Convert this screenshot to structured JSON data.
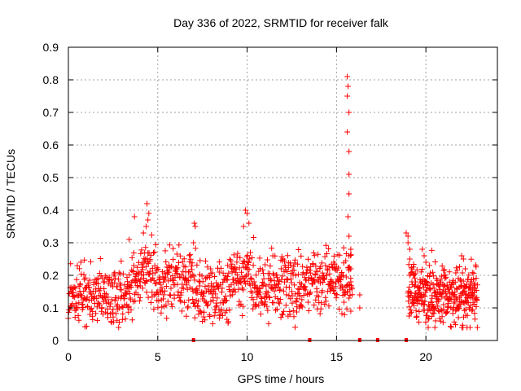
{
  "chart_data": {
    "type": "scatter",
    "title": "Day 336 of 2022, SRMTID for receiver falk",
    "xlabel": "GPS time / hours",
    "ylabel": "SRMTID / TECUs",
    "xlim": [
      0,
      24
    ],
    "ylim": [
      0,
      0.9
    ],
    "xticks": [
      "0",
      "5",
      "10",
      "15",
      "20"
    ],
    "yticks": [
      "0",
      "0.1",
      "0.2",
      "0.3",
      "0.4",
      "0.5",
      "0.6",
      "0.7",
      "0.8",
      "0.9"
    ],
    "grid": true,
    "marker": "+",
    "color": "#ff0000",
    "series": [
      {
        "name": "SRMTID",
        "segments": [
          {
            "x_start": 0.0,
            "x_end": 15.9,
            "points": 1000,
            "seed": 11
          },
          {
            "x_start": 19.0,
            "x_end": 22.9,
            "points": 340,
            "seed": 23
          }
        ],
        "points": [
          [
            4.4,
            0.42
          ],
          [
            4.5,
            0.39
          ],
          [
            4.45,
            0.37
          ],
          [
            4.35,
            0.35
          ],
          [
            3.7,
            0.38
          ],
          [
            4.2,
            0.33
          ],
          [
            3.4,
            0.31
          ],
          [
            7.05,
            0.36
          ],
          [
            7.1,
            0.35
          ],
          [
            7.0,
            0.3
          ],
          [
            9.9,
            0.4
          ],
          [
            10.0,
            0.39
          ],
          [
            10.1,
            0.36
          ],
          [
            9.8,
            0.35
          ],
          [
            15.6,
            0.81
          ],
          [
            15.65,
            0.78
          ],
          [
            15.6,
            0.75
          ],
          [
            15.7,
            0.7
          ],
          [
            15.6,
            0.64
          ],
          [
            15.7,
            0.58
          ],
          [
            15.7,
            0.51
          ],
          [
            15.7,
            0.45
          ],
          [
            15.65,
            0.38
          ],
          [
            15.7,
            0.32
          ],
          [
            15.8,
            0.28
          ],
          [
            15.7,
            0.26
          ],
          [
            15.8,
            0.22
          ],
          [
            15.8,
            0.18
          ],
          [
            15.7,
            0.13
          ],
          [
            15.8,
            0.09
          ],
          [
            16.3,
            0.14
          ],
          [
            16.3,
            0.1
          ],
          [
            18.9,
            0.33
          ],
          [
            19.0,
            0.32
          ],
          [
            19.0,
            0.3
          ],
          [
            19.1,
            0.28
          ],
          [
            19.1,
            0.25
          ],
          [
            19.2,
            0.22
          ],
          [
            19.3,
            0.2
          ],
          [
            19.4,
            0.17
          ],
          [
            19.8,
            0.28
          ],
          [
            19.9,
            0.26
          ],
          [
            20.0,
            0.24
          ],
          [
            22.0,
            0.26
          ],
          [
            22.1,
            0.25
          ],
          [
            22.2,
            0.22
          ],
          [
            22.5,
            0.18
          ],
          [
            22.6,
            0.16
          ],
          [
            22.7,
            0.17
          ]
        ]
      }
    ],
    "zero_markers_x": [
      7.0,
      13.5,
      16.3,
      17.3,
      18.9
    ]
  }
}
